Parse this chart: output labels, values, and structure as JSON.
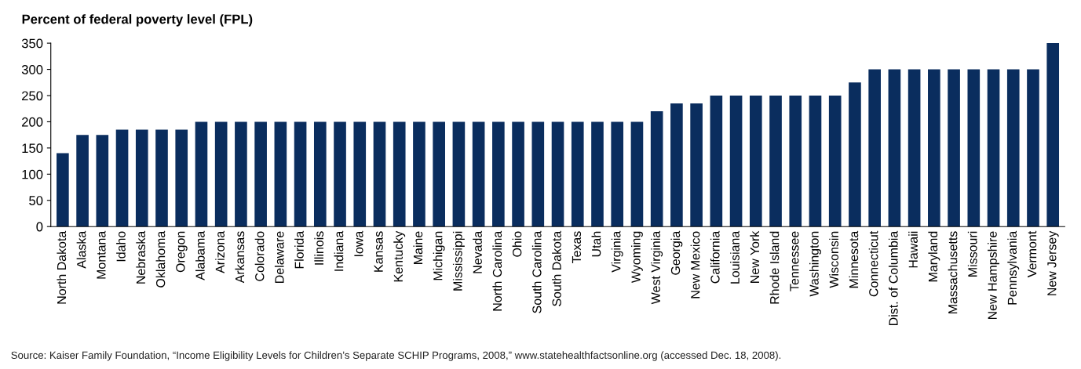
{
  "chart_data": {
    "type": "bar",
    "ylabel": "Percent of federal poverty level (FPL)",
    "categories": [
      "North Dakota",
      "Alaska",
      "Montana",
      "Idaho",
      "Nebraska",
      "Oklahoma",
      "Oregon",
      "Alabama",
      "Arizona",
      "Arkansas",
      "Colorado",
      "Delaware",
      "Florida",
      "Illinois",
      "Indiana",
      "Iowa",
      "Kansas",
      "Kentucky",
      "Maine",
      "Michigan",
      "Mississippi",
      "Nevada",
      "North Carolina",
      "Ohio",
      "South Carolina",
      "South Dakota",
      "Texas",
      "Utah",
      "Virginia",
      "Wyoming",
      "West Virginia",
      "Georgia",
      "New Mexico",
      "California",
      "Louisiana",
      "New York",
      "Rhode Island",
      "Tennessee",
      "Washington",
      "Wisconsin",
      "Minnesota",
      "Connecticut",
      "Dist. of Columbia",
      "Hawaii",
      "Maryland",
      "Massachusetts",
      "Missouri",
      "New Hampshire",
      "Pennsylvania",
      "Vermont",
      "New Jersey"
    ],
    "values": [
      140,
      175,
      175,
      185,
      185,
      185,
      185,
      200,
      200,
      200,
      200,
      200,
      200,
      200,
      200,
      200,
      200,
      200,
      200,
      200,
      200,
      200,
      200,
      200,
      200,
      200,
      200,
      200,
      200,
      200,
      220,
      235,
      235,
      250,
      250,
      250,
      250,
      250,
      250,
      250,
      275,
      300,
      300,
      300,
      300,
      300,
      300,
      300,
      300,
      300,
      350
    ],
    "color": "#0a2d5e",
    "ylim": [
      0,
      350
    ],
    "yticks": [
      0,
      50,
      100,
      150,
      200,
      250,
      300,
      350
    ],
    "grid": false,
    "annotations": [
      "Source: Kaiser Family Foundation, “Income Eligibility Levels for Children’s Separate SCHIP Programs, 2008,” www.statehealthfactsonline.org (accessed Dec. 18, 2008)."
    ]
  }
}
